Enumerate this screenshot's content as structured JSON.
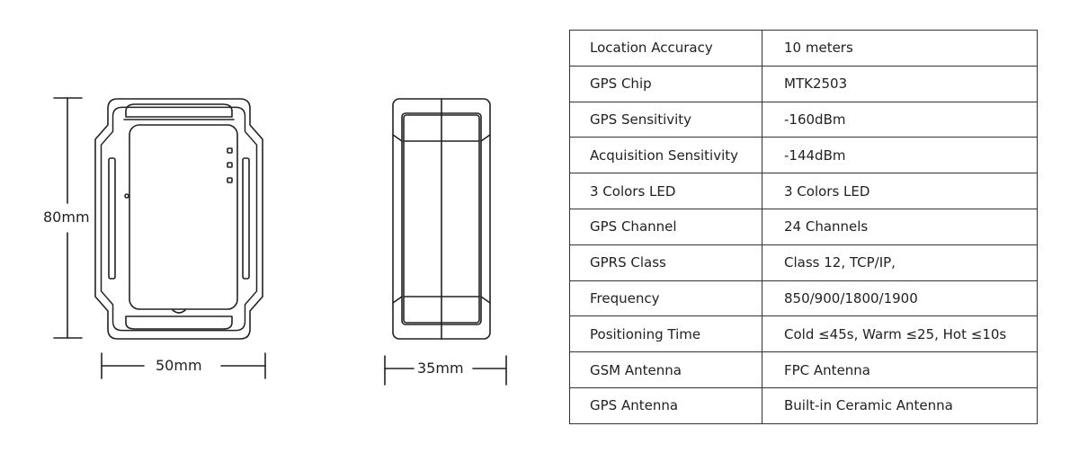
{
  "dimensions": {
    "height": "80mm",
    "width_front": "50mm",
    "width_side": "35mm"
  },
  "specs": [
    {
      "label": "Location Accuracy",
      "value": "10 meters"
    },
    {
      "label": "GPS Chip",
      "value": "MTK2503"
    },
    {
      "label": "GPS Sensitivity",
      "value": "-160dBm"
    },
    {
      "label": "Acquisition Sensitivity",
      "value": "-144dBm"
    },
    {
      "label": "3 Colors LED",
      "value": "3 Colors LED"
    },
    {
      "label": "GPS Channel",
      "value": "24 Channels"
    },
    {
      "label": "GPRS Class",
      "value": "Class 12, TCP/IP,"
    },
    {
      "label": "Frequency",
      "value": "850/900/1800/1900"
    },
    {
      "label": "Positioning Time",
      "value": "Cold ≤45s, Warm ≤25, Hot ≤10s"
    },
    {
      "label": "GSM Antenna",
      "value": "FPC Antenna"
    },
    {
      "label": "GPS Antenna",
      "value": "Built-in Ceramic Antenna"
    }
  ]
}
